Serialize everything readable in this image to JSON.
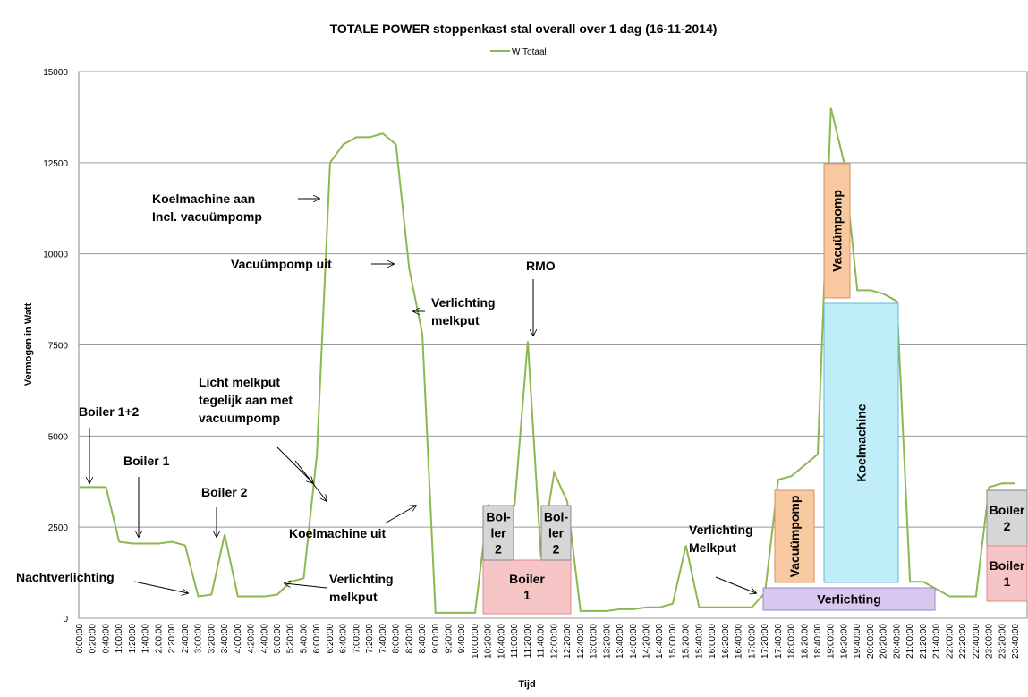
{
  "chart_data": {
    "type": "line",
    "title": "TOTALE POWER stoppenkast stal overall  over 1 dag (16-11-2014)",
    "x_label": "Tijd",
    "y_label": "Vermogen in Watt",
    "categories": [
      "0:00:00",
      "0:20:00",
      "0:40:00",
      "1:00:00",
      "1:20:00",
      "1:40:00",
      "2:00:00",
      "2:20:00",
      "2:40:00",
      "3:00:00",
      "3:20:00",
      "3:40:00",
      "4:00:00",
      "4:20:00",
      "4:40:00",
      "5:00:00",
      "5:20:00",
      "5:40:00",
      "6:00:00",
      "6:20:00",
      "6:40:00",
      "7:00:00",
      "7:20:00",
      "7:40:00",
      "8:00:00",
      "8:20:00",
      "8:40:00",
      "9:00:00",
      "9:20:00",
      "9:40:00",
      "10:00:00",
      "10:20:00",
      "10:40:00",
      "11:00:00",
      "11:20:00",
      "11:40:00",
      "12:00:00",
      "12:20:00",
      "12:40:00",
      "13:00:00",
      "13:20:00",
      "13:40:00",
      "14:00:00",
      "14:20:00",
      "14:40:00",
      "15:00:00",
      "15:20:00",
      "15:40:00",
      "16:00:00",
      "16:20:00",
      "16:40:00",
      "17:00:00",
      "17:20:00",
      "17:40:00",
      "18:00:00",
      "18:20:00",
      "18:40:00",
      "19:00:00",
      "19:20:00",
      "19:40:00",
      "20:00:00",
      "20:20:00",
      "20:40:00",
      "21:00:00",
      "21:20:00",
      "21:40:00",
      "22:00:00",
      "22:20:00",
      "22:40:00",
      "23:00:00",
      "23:20:00",
      "23:40:00"
    ],
    "series": [
      {
        "name": "W Totaal",
        "color": "#8db84f",
        "values": [
          3600,
          3600,
          3600,
          2100,
          2050,
          2050,
          2050,
          2100,
          2000,
          600,
          650,
          2300,
          600,
          600,
          600,
          650,
          1000,
          1100,
          4500,
          12500,
          13000,
          13200,
          13200,
          13300,
          13000,
          9600,
          7800,
          150,
          150,
          150,
          150,
          3100,
          3000,
          3100,
          7600,
          1700,
          4000,
          3200,
          200,
          200,
          200,
          250,
          250,
          300,
          300,
          400,
          2000,
          300,
          300,
          300,
          300,
          300,
          700,
          3800,
          3900,
          4200,
          4500,
          14000,
          12500,
          9000,
          9000,
          8900,
          8700,
          1000,
          1000,
          800,
          600,
          600,
          600,
          3600,
          3700,
          3700
        ]
      }
    ],
    "ylim": [
      0,
      15000
    ],
    "yticks": [
      0,
      2500,
      5000,
      7500,
      10000,
      12500,
      15000
    ],
    "grid": true,
    "legend": "top",
    "annotations": [
      {
        "text": [
          "Boiler 1+2"
        ]
      },
      {
        "text": [
          "Boiler 1"
        ]
      },
      {
        "text": [
          "Boiler 2"
        ]
      },
      {
        "text": [
          "Nachtverlichting"
        ]
      },
      {
        "text": [
          "Verlichting",
          "melkput"
        ]
      },
      {
        "text": [
          "Licht melkput",
          "tegelijk aan met",
          "vacuumpomp"
        ]
      },
      {
        "text": [
          "Koelmachine aan",
          "Incl. vacuümpomp"
        ]
      },
      {
        "text": [
          "Vacuümpomp uit"
        ]
      },
      {
        "text": [
          "Verlichting",
          "melkput"
        ]
      },
      {
        "text": [
          "RMO"
        ]
      },
      {
        "text": [
          "Koelmachine uit"
        ]
      },
      {
        "text": [
          "Verlichting",
          "Melkput"
        ]
      }
    ],
    "boxes": [
      {
        "text": [
          "Boiler",
          "1"
        ]
      },
      {
        "text": [
          "Boi-",
          "ler",
          "2"
        ]
      },
      {
        "text": [
          "Boi-",
          "ler",
          "2"
        ]
      },
      {
        "text": [
          "Verlichting"
        ]
      },
      {
        "text": [
          "Vacuümpomp"
        ]
      },
      {
        "text": [
          "Vacuümpomp"
        ]
      },
      {
        "text": [
          "Koelmachine"
        ]
      },
      {
        "text": [
          "Boiler",
          "2"
        ]
      },
      {
        "text": [
          "Boiler",
          "1"
        ]
      }
    ]
  }
}
